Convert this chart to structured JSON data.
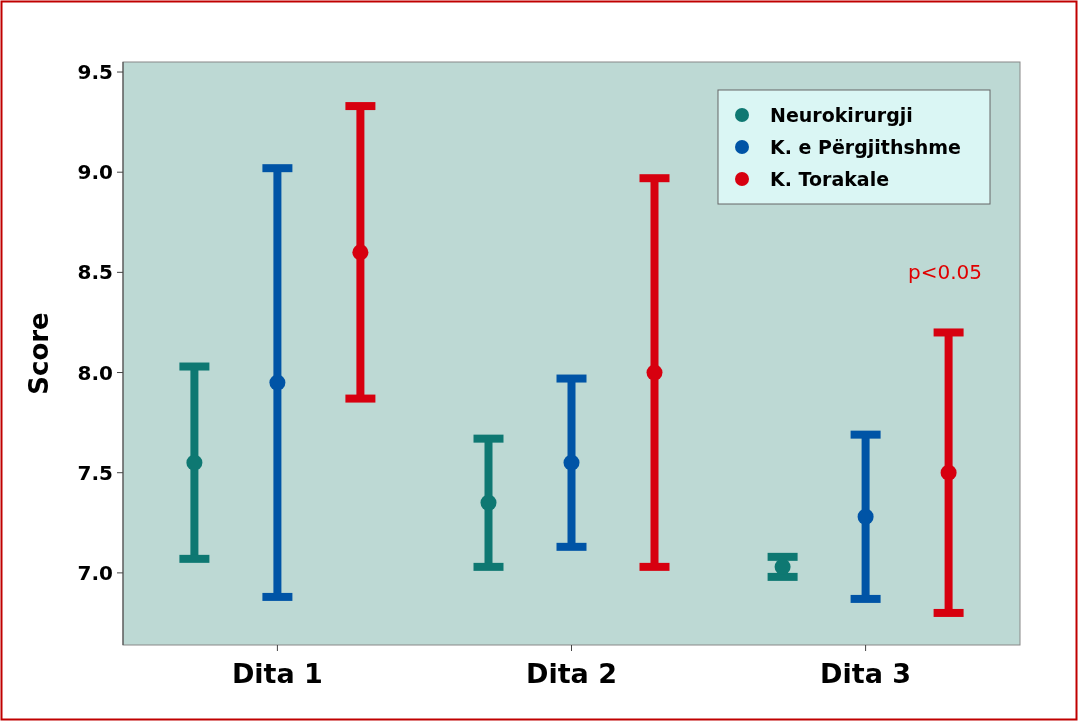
{
  "chart_data": {
    "type": "scatter",
    "ylabel": "Score",
    "categories": [
      "Dita 1",
      "Dita 2",
      "Dita 3"
    ],
    "series": [
      {
        "name": "Neurokirurgji",
        "color": "#0e7872",
        "values": [
          7.55,
          7.35,
          7.03
        ],
        "errors": [
          0.48,
          0.32,
          0.05
        ]
      },
      {
        "name": "K. e Përgjithshme",
        "color": "#0054a6",
        "values": [
          7.95,
          7.55,
          7.28
        ],
        "errors": [
          1.07,
          0.42,
          0.41
        ]
      },
      {
        "name": "K. Torakale",
        "color": "#d7000f",
        "values": [
          8.6,
          8.0,
          7.5
        ],
        "errors": [
          0.73,
          0.97,
          0.7
        ]
      }
    ],
    "annotations": [
      "p<0.05"
    ],
    "ylim": [
      6.64,
      9.55
    ],
    "yticks": [
      {
        "value": 7,
        "label": "7.0"
      },
      {
        "value": 7.5,
        "label": "7.5"
      },
      {
        "value": 8,
        "label": "8.0"
      },
      {
        "value": 8.5,
        "label": "8.5"
      },
      {
        "value": 9,
        "label": "9.0"
      },
      {
        "value": 9.5,
        "label": "9.5"
      }
    ],
    "legend": "top right",
    "marker": "circle",
    "grid": false
  }
}
